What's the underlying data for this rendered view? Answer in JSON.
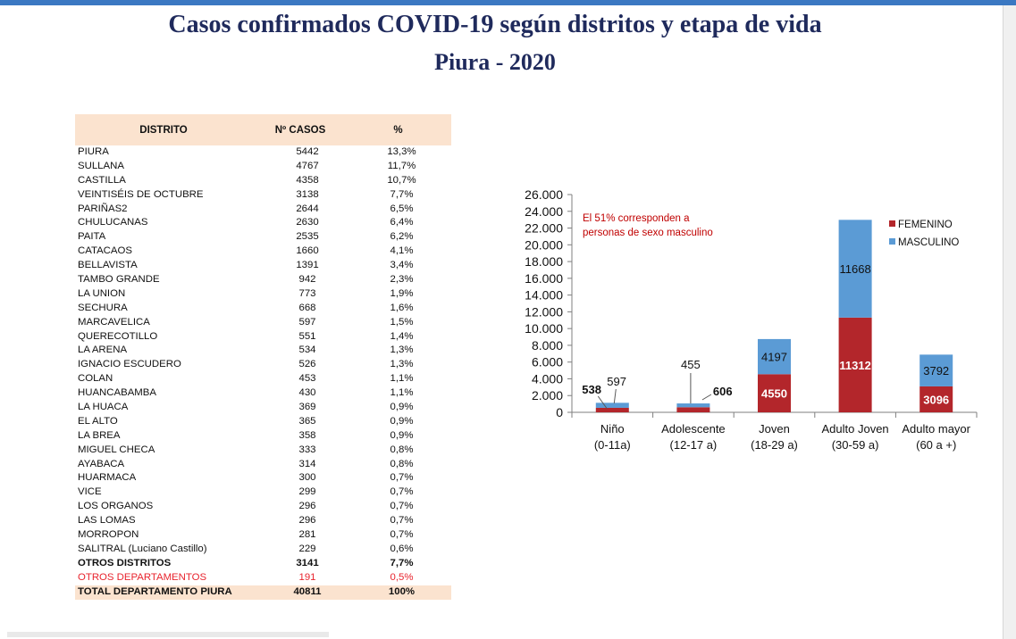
{
  "title_line1": "Casos confirmados COVID-19 según distritos y etapa de vida",
  "title_line2": "Piura - 2020",
  "table": {
    "headers": [
      "DISTRITO",
      "Nº CASOS",
      "%"
    ],
    "rows": [
      [
        "PIURA",
        "5442",
        "13,3%"
      ],
      [
        "SULLANA",
        "4767",
        "11,7%"
      ],
      [
        "CASTILLA",
        "4358",
        "10,7%"
      ],
      [
        "VEINTISÉIS DE OCTUBRE",
        "3138",
        "7,7%"
      ],
      [
        "PARIÑAS2",
        "2644",
        "6,5%"
      ],
      [
        "CHULUCANAS",
        "2630",
        "6,4%"
      ],
      [
        "PAITA",
        "2535",
        "6,2%"
      ],
      [
        "CATACAOS",
        "1660",
        "4,1%"
      ],
      [
        "BELLAVISTA",
        "1391",
        "3,4%"
      ],
      [
        "TAMBO GRANDE",
        "942",
        "2,3%"
      ],
      [
        "LA UNION",
        "773",
        "1,9%"
      ],
      [
        "SECHURA",
        "668",
        "1,6%"
      ],
      [
        "MARCAVELICA",
        "597",
        "1,5%"
      ],
      [
        "QUERECOTILLO",
        "551",
        "1,4%"
      ],
      [
        "LA ARENA",
        "534",
        "1,3%"
      ],
      [
        "IGNACIO ESCUDERO",
        "526",
        "1,3%"
      ],
      [
        "COLAN",
        "453",
        "1,1%"
      ],
      [
        "HUANCABAMBA",
        "430",
        "1,1%"
      ],
      [
        "LA HUACA",
        "369",
        "0,9%"
      ],
      [
        "EL ALTO",
        "365",
        "0,9%"
      ],
      [
        "LA BREA",
        "358",
        "0,9%"
      ],
      [
        "MIGUEL CHECA",
        "333",
        "0,8%"
      ],
      [
        "AYABACA",
        "314",
        "0,8%"
      ],
      [
        "HUARMACA",
        "300",
        "0,7%"
      ],
      [
        "VICE",
        "299",
        "0,7%"
      ],
      [
        "LOS ORGANOS",
        "296",
        "0,7%"
      ],
      [
        "LAS LOMAS",
        "296",
        "0,7%"
      ],
      [
        "MORROPON",
        "281",
        "0,7%"
      ],
      [
        "SALITRAL (Luciano Castillo)",
        "229",
        "0,6%"
      ]
    ],
    "otros_distritos": [
      "OTROS DISTRITOS",
      "3141",
      "7,7%"
    ],
    "otros_departamentos": [
      "OTROS DEPARTAMENTOS",
      "191",
      "0,5%"
    ],
    "total": [
      "TOTAL DEPARTAMENTO PIURA",
      "40811",
      "100%"
    ]
  },
  "chart_data": {
    "type": "bar",
    "stacked": true,
    "categories": [
      "Niño\n(0-11a)",
      "Adolescente\n(12-17 a)",
      "Joven\n(18-29 a)",
      "Adulto Joven\n(30-59 a)",
      "Adulto mayor\n(60 a +)"
    ],
    "series": [
      {
        "name": "FEMENINO",
        "color": "#b3262b",
        "values": [
          538,
          606,
          4550,
          11312,
          3096
        ]
      },
      {
        "name": "MASCULINO",
        "color": "#5b9bd5",
        "values": [
          597,
          455,
          4197,
          11668,
          3792
        ]
      }
    ],
    "ylim": [
      0,
      26000
    ],
    "yticks": [
      "0",
      "2.000",
      "4.000",
      "6.000",
      "8.000",
      "10.000",
      "12.000",
      "14.000",
      "16.000",
      "18.000",
      "20.000",
      "22.000",
      "24.000",
      "26.000"
    ],
    "annotation": [
      "El 51%  corresponden  a",
      "personas de sexo masculino"
    ],
    "legend_position": "top-right",
    "annotation_color": "#c00000"
  }
}
